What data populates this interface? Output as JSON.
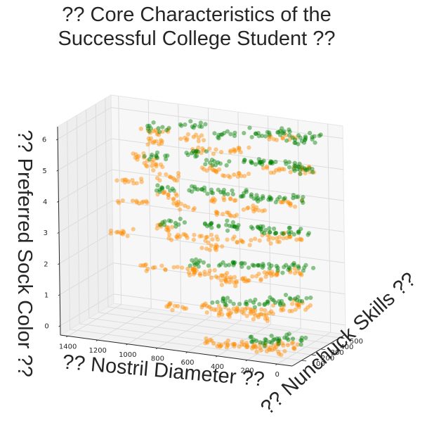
{
  "chart_data": {
    "type": "scatter",
    "title": "?? Core Characteristics of the\nSuccessful College Student ??",
    "xlabel": "?? Nostril Diameter ??",
    "ylabel": "?? Nunchuck Skills ??",
    "zlabel": "?? Preferred Sock Color ??",
    "xlim": [
      1450,
      -100
    ],
    "ylim": [
      0,
      560
    ],
    "zlim": [
      -0.3,
      6.4
    ],
    "x_ticks": [
      1400,
      1200,
      1000,
      800,
      600,
      400,
      200,
      0
    ],
    "y_ticks": [
      100,
      200,
      300,
      400,
      500
    ],
    "z_ticks": [
      0,
      1,
      2,
      3,
      4,
      5,
      6
    ],
    "grid": true,
    "series": [
      {
        "color": "#ff8c00",
        "points": [
          [
            1000,
            300,
            6.0
          ],
          [
            900,
            150,
            6.0
          ],
          [
            700,
            250,
            6.1
          ],
          [
            550,
            120,
            6.0
          ],
          [
            380,
            180,
            6.0
          ],
          [
            200,
            400,
            6.1
          ],
          [
            1100,
            350,
            5.0
          ],
          [
            950,
            200,
            5.1
          ],
          [
            780,
            120,
            5.0
          ],
          [
            600,
            300,
            5.0
          ],
          [
            420,
            230,
            5.1
          ],
          [
            260,
            420,
            5.0
          ],
          [
            120,
            480,
            5.0
          ],
          [
            1250,
            420,
            4.0
          ],
          [
            1050,
            150,
            4.0
          ],
          [
            880,
            260,
            4.1
          ],
          [
            720,
            180,
            4.0
          ],
          [
            560,
            340,
            4.0
          ],
          [
            400,
            120,
            4.1
          ],
          [
            300,
            260,
            4.0
          ],
          [
            180,
            420,
            4.0
          ],
          [
            1100,
            130,
            3.0
          ],
          [
            900,
            280,
            3.0
          ],
          [
            740,
            120,
            3.1
          ],
          [
            600,
            220,
            3.0
          ],
          [
            460,
            90,
            3.0
          ],
          [
            340,
            180,
            3.1
          ],
          [
            240,
            300,
            3.0
          ],
          [
            150,
            380,
            3.0
          ],
          [
            900,
            120,
            2.0
          ],
          [
            700,
            170,
            2.0
          ],
          [
            560,
            80,
            2.1
          ],
          [
            450,
            140,
            2.0
          ],
          [
            350,
            60,
            2.0
          ],
          [
            260,
            120,
            2.0
          ],
          [
            180,
            220,
            2.1
          ],
          [
            110,
            320,
            2.0
          ],
          [
            700,
            60,
            1.0
          ],
          [
            520,
            110,
            1.0
          ],
          [
            410,
            40,
            1.0
          ],
          [
            320,
            90,
            1.1
          ],
          [
            240,
            150,
            1.0
          ],
          [
            160,
            60,
            1.0
          ],
          [
            90,
            210,
            1.0
          ],
          [
            50,
            310,
            1.0
          ],
          [
            450,
            40,
            0.0
          ],
          [
            330,
            70,
            0.0
          ],
          [
            220,
            30,
            0.1
          ],
          [
            140,
            100,
            0.0
          ],
          [
            70,
            60,
            0.0
          ],
          [
            30,
            160,
            0.0
          ]
        ]
      },
      {
        "color": "#008000",
        "points": [
          [
            1000,
            350,
            6.0
          ],
          [
            800,
            420,
            6.1
          ],
          [
            600,
            380,
            6.0
          ],
          [
            420,
            460,
            6.0
          ],
          [
            280,
            500,
            6.1
          ],
          [
            150,
            450,
            6.0
          ],
          [
            80,
            520,
            6.0
          ],
          [
            1050,
            400,
            5.0
          ],
          [
            850,
            460,
            5.1
          ],
          [
            650,
            420,
            5.0
          ],
          [
            480,
            500,
            5.0
          ],
          [
            330,
            470,
            5.1
          ],
          [
            200,
            520,
            5.0
          ],
          [
            100,
            480,
            5.0
          ],
          [
            1000,
            380,
            4.0
          ],
          [
            800,
            440,
            4.0
          ],
          [
            620,
            400,
            4.1
          ],
          [
            460,
            470,
            4.0
          ],
          [
            320,
            430,
            4.0
          ],
          [
            200,
            500,
            4.0
          ],
          [
            900,
            360,
            3.0
          ],
          [
            700,
            420,
            3.0
          ],
          [
            520,
            380,
            3.1
          ],
          [
            380,
            440,
            3.0
          ],
          [
            260,
            410,
            3.0
          ],
          [
            150,
            470,
            3.0
          ],
          [
            700,
            280,
            2.0
          ],
          [
            500,
            340,
            2.0
          ],
          [
            340,
            300,
            2.1
          ],
          [
            220,
            360,
            2.0
          ],
          [
            120,
            420,
            2.0
          ],
          [
            500,
            220,
            1.0
          ],
          [
            320,
            260,
            1.0
          ],
          [
            200,
            300,
            1.0
          ],
          [
            100,
            350,
            1.1
          ],
          [
            240,
            160,
            0.0
          ],
          [
            120,
            200,
            0.0
          ],
          [
            60,
            260,
            0.0
          ]
        ]
      }
    ]
  }
}
